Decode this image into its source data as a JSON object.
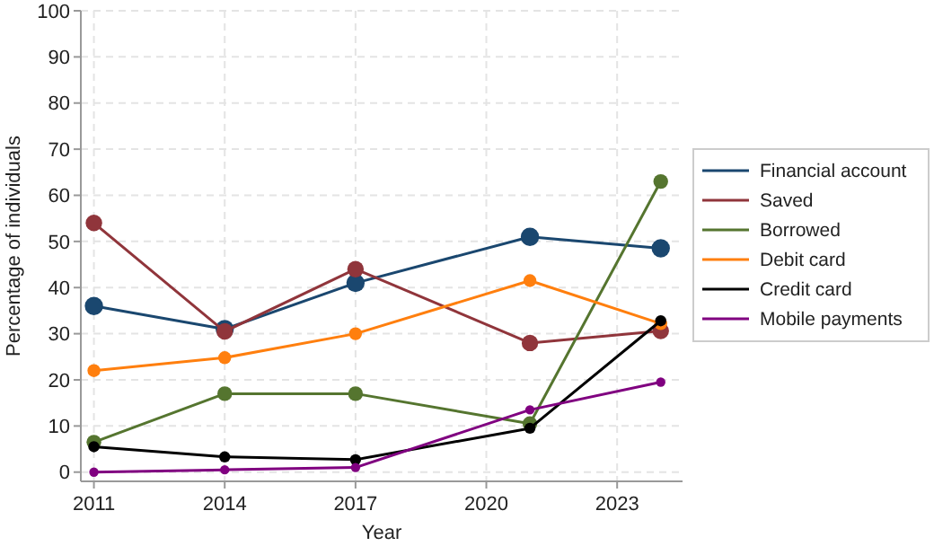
{
  "chart_data": {
    "type": "line",
    "xlabel": "Year",
    "ylabel": "Percentage of individuals",
    "x": [
      2011,
      2014,
      2017,
      2021,
      2024
    ],
    "xlim": [
      2010.7,
      2024.5
    ],
    "xticks": [
      2011,
      2014,
      2017,
      2020,
      2023
    ],
    "ylim": [
      -2,
      100
    ],
    "yticks": [
      0,
      10,
      20,
      30,
      40,
      50,
      60,
      70,
      80,
      90,
      100
    ],
    "grid": true,
    "legend": "right",
    "marker": "circle",
    "line_style": "solid",
    "series": [
      {
        "name": "Financial account",
        "color": "#1a476f",
        "values": [
          36,
          31,
          41,
          51,
          48.5
        ]
      },
      {
        "name": "Saved",
        "color": "#90353b",
        "values": [
          54,
          30.5,
          44,
          28,
          30.6
        ]
      },
      {
        "name": "Borrowed",
        "color": "#55752f",
        "values": [
          6.5,
          17,
          17,
          10.5,
          63
        ]
      },
      {
        "name": "Debit card",
        "color": "#ff7f0e",
        "values": [
          22,
          24.8,
          30,
          41.5,
          32.2
        ]
      },
      {
        "name": "Credit card",
        "color": "#000000",
        "values": [
          5.5,
          3.3,
          2.7,
          9.5,
          32.8
        ]
      },
      {
        "name": "Mobile payments",
        "color": "#800080",
        "values": [
          0,
          0.5,
          1,
          13.5,
          19.5
        ]
      }
    ]
  }
}
